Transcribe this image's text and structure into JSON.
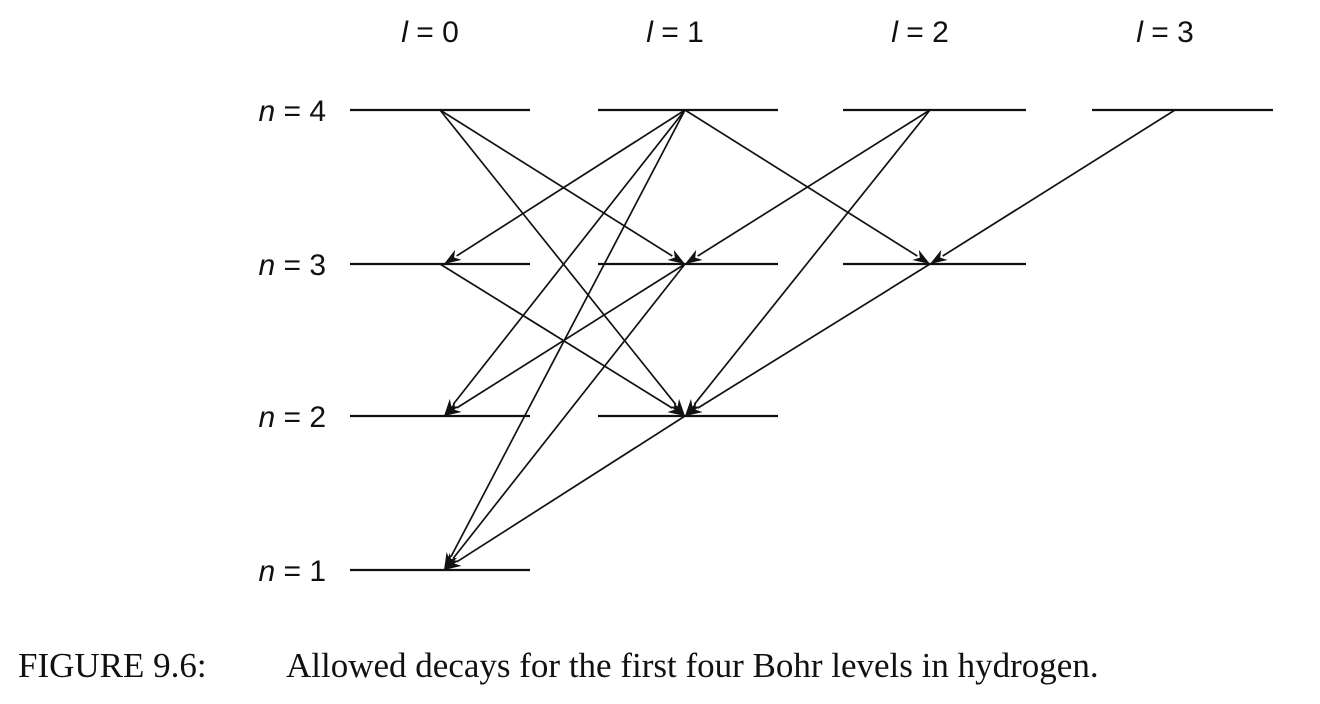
{
  "columns": [
    {
      "id": "l0",
      "symbol": "l",
      "value": "0"
    },
    {
      "id": "l1",
      "symbol": "l",
      "value": "1"
    },
    {
      "id": "l2",
      "symbol": "l",
      "value": "2"
    },
    {
      "id": "l3",
      "symbol": "l",
      "value": "3"
    }
  ],
  "rows": [
    {
      "id": "n4",
      "symbol": "n",
      "value": "4"
    },
    {
      "id": "n3",
      "symbol": "n",
      "value": "3"
    },
    {
      "id": "n2",
      "symbol": "n",
      "value": "2"
    },
    {
      "id": "n1",
      "symbol": "n",
      "value": "1"
    }
  ],
  "levels": [
    {
      "n": 4,
      "l": 0
    },
    {
      "n": 4,
      "l": 1
    },
    {
      "n": 4,
      "l": 2
    },
    {
      "n": 4,
      "l": 3
    },
    {
      "n": 3,
      "l": 0
    },
    {
      "n": 3,
      "l": 1
    },
    {
      "n": 3,
      "l": 2
    },
    {
      "n": 2,
      "l": 0
    },
    {
      "n": 2,
      "l": 1
    },
    {
      "n": 1,
      "l": 0
    }
  ],
  "transitions": [
    {
      "from": [
        4,
        0
      ],
      "to": [
        3,
        1
      ]
    },
    {
      "from": [
        4,
        0
      ],
      "to": [
        2,
        1
      ]
    },
    {
      "from": [
        4,
        1
      ],
      "to": [
        3,
        0
      ]
    },
    {
      "from": [
        4,
        1
      ],
      "to": [
        3,
        2
      ]
    },
    {
      "from": [
        4,
        1
      ],
      "to": [
        2,
        0
      ]
    },
    {
      "from": [
        4,
        1
      ],
      "to": [
        1,
        0
      ]
    },
    {
      "from": [
        4,
        2
      ],
      "to": [
        3,
        1
      ]
    },
    {
      "from": [
        4,
        2
      ],
      "to": [
        2,
        1
      ]
    },
    {
      "from": [
        4,
        3
      ],
      "to": [
        3,
        2
      ]
    },
    {
      "from": [
        3,
        0
      ],
      "to": [
        2,
        1
      ]
    },
    {
      "from": [
        3,
        1
      ],
      "to": [
        2,
        0
      ]
    },
    {
      "from": [
        3,
        1
      ],
      "to": [
        1,
        0
      ]
    },
    {
      "from": [
        3,
        2
      ],
      "to": [
        2,
        1
      ]
    },
    {
      "from": [
        2,
        1
      ],
      "to": [
        1,
        0
      ]
    }
  ],
  "caption": {
    "number": "FIGURE 9.6:",
    "text": "Allowed decays for the first four Bohr levels in hydrogen."
  }
}
